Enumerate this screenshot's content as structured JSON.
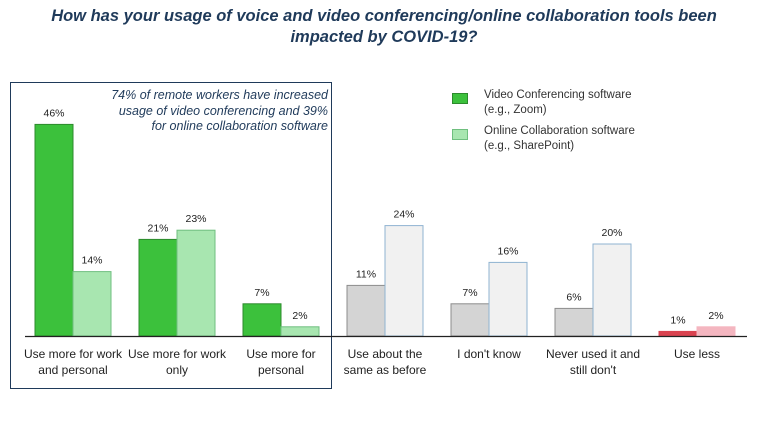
{
  "title_lines": [
    "How has your usage of voice and video conferencing/online collaboration tools been",
    "impacted by COVID-19?"
  ],
  "annotation_lines": [
    "74% of remote workers have increased",
    "usage of video conferencing and 39%",
    "for online collaboration software"
  ],
  "legend": [
    {
      "lines": [
        "Video Conferencing software",
        "(e.g., Zoom)"
      ],
      "color": "#3cc13c"
    },
    {
      "lines": [
        "Online Collaboration software",
        "(e.g., SharePoint)"
      ],
      "color": "#a8e6b0"
    }
  ],
  "colors": {
    "video": "#3cc13c",
    "video_stroke": "#2c8a2c",
    "collab": "#a8e6b0",
    "collab_stroke": "#6fbf7f",
    "grey_video": "#d4d4d4",
    "grey_video_stroke": "#8c8c8c",
    "grey_collab": "#f1f1f1",
    "grey_collab_stroke": "#8fb3d1",
    "red_video": "#d9424f",
    "red_collab": "#f4b6c0",
    "axis": "#222222",
    "text": "#222222"
  },
  "chart_data": {
    "type": "bar",
    "title": "How has your usage of voice and video conferencing/online collaboration tools been impacted by COVID-19?",
    "categories": [
      "Use more for work and personal",
      "Use more for work only",
      "Use more for personal",
      "Use about the same as before",
      "I don't know",
      "Never used it and still don't",
      "Use less"
    ],
    "category_label_lines": [
      [
        "Use more for work",
        "and personal"
      ],
      [
        "Use more for work",
        "only"
      ],
      [
        "Use more for",
        "personal"
      ],
      [
        "Use about the",
        "same as before"
      ],
      [
        "I don't know"
      ],
      [
        "Never used it and",
        "still don't"
      ],
      [
        "Use less"
      ]
    ],
    "category_style": [
      "highlight",
      "highlight",
      "highlight",
      "grey",
      "grey",
      "grey",
      "red"
    ],
    "series": [
      {
        "name": "Video Conferencing software (e.g., Zoom)",
        "values": [
          46,
          21,
          7,
          11,
          7,
          6,
          1
        ]
      },
      {
        "name": "Online Collaboration software (e.g., SharePoint)",
        "values": [
          14,
          23,
          2,
          24,
          16,
          20,
          2
        ]
      }
    ],
    "value_suffix": "%",
    "ylim": [
      0,
      50
    ],
    "grid": false,
    "legend_position": "top-right"
  }
}
